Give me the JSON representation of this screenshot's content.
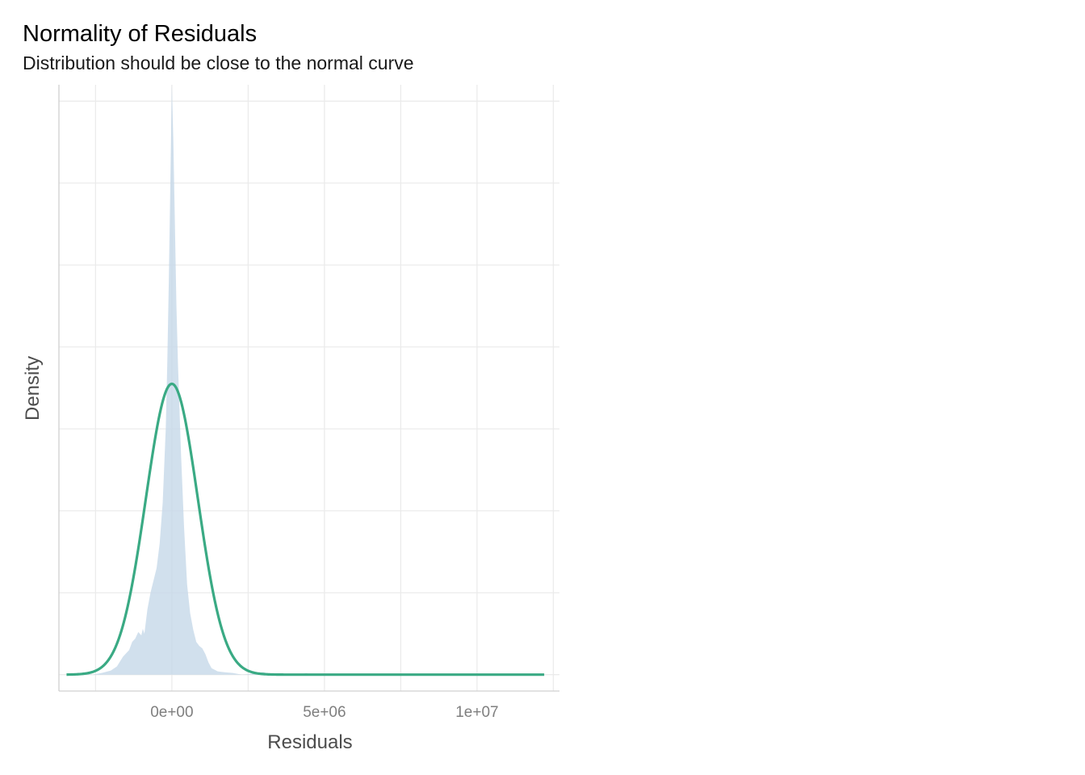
{
  "chart_data": {
    "type": "area",
    "title": "Normality of Residuals",
    "subtitle": "Distribution should be close to the normal curve",
    "xlabel": "Residuals",
    "ylabel": "Density",
    "xlim": [
      -3700000,
      12700000
    ],
    "ylim": [
      -0.02,
      0.72
    ],
    "x_ticks": [
      0,
      5000000,
      10000000
    ],
    "x_tick_labels": [
      "0e+00",
      "5e+06",
      "1e+07"
    ],
    "y_ticks_shown": false,
    "grid": true,
    "series": [
      {
        "kind": "density-area",
        "color": "#c6d8e8",
        "x": [
          -3400000,
          -3000000,
          -2600000,
          -2300000,
          -2000000,
          -1800000,
          -1600000,
          -1400000,
          -1300000,
          -1200000,
          -1100000,
          -1000000,
          -950000,
          -900000,
          -800000,
          -700000,
          -600000,
          -500000,
          -400000,
          -300000,
          -200000,
          -150000,
          -100000,
          -50000,
          0,
          50000,
          100000,
          150000,
          200000,
          300000,
          400000,
          500000,
          600000,
          700000,
          800000,
          900000,
          1000000,
          1100000,
          1200000,
          1300000,
          1500000,
          1700000,
          2000000,
          2300000,
          2600000,
          3000000,
          3300000,
          3600000,
          4200000,
          4400000,
          4600000,
          5500000,
          7000000,
          9000000,
          10500000,
          12000000
        ],
        "y": [
          0.0,
          0.002,
          0.0,
          0.002,
          0.005,
          0.01,
          0.022,
          0.03,
          0.04,
          0.044,
          0.052,
          0.048,
          0.056,
          0.05,
          0.08,
          0.1,
          0.115,
          0.13,
          0.16,
          0.21,
          0.3,
          0.38,
          0.48,
          0.6,
          0.72,
          0.65,
          0.55,
          0.45,
          0.38,
          0.27,
          0.18,
          0.11,
          0.075,
          0.055,
          0.04,
          0.035,
          0.032,
          0.025,
          0.015,
          0.008,
          0.004,
          0.003,
          0.002,
          0.0,
          0.001,
          0.003,
          0.0,
          0.001,
          0.0,
          0.002,
          0.0,
          0.0,
          0.0,
          0.0,
          0.0,
          0.0
        ]
      },
      {
        "kind": "normal-curve",
        "color": "#3aaa84",
        "distribution": "normal",
        "mean": 0,
        "sd": 850000,
        "peak_density": 0.355,
        "x_range": [
          -3450000,
          12200000
        ]
      }
    ]
  }
}
